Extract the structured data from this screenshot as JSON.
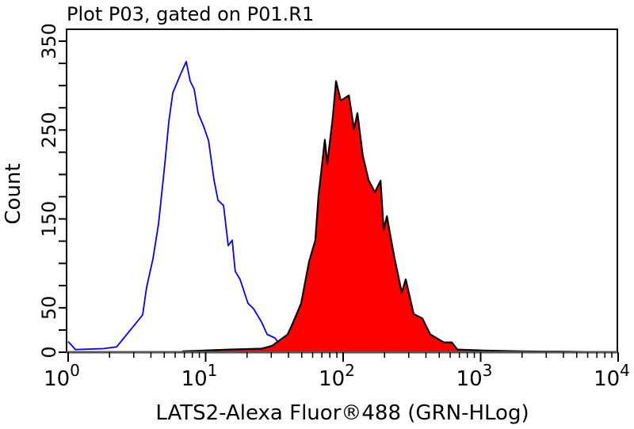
{
  "chart_data": {
    "type": "area",
    "title": "Plot P03, gated on P01.R1",
    "xlabel": "LATS2-Alexa Fluor®488 (GRN-HLog)",
    "ylabel": "Count",
    "xscale": "log",
    "xlim": [
      1,
      10000
    ],
    "ylim": [
      0,
      363
    ],
    "x_ticks": [
      {
        "base": "10",
        "exp": "0",
        "value": 1
      },
      {
        "base": "10",
        "exp": "1",
        "value": 10
      },
      {
        "base": "10",
        "exp": "2",
        "value": 100
      },
      {
        "base": "10",
        "exp": "3",
        "value": 1000
      },
      {
        "base": "10",
        "exp": "4",
        "value": 10000
      }
    ],
    "y_tick_labels": [
      "0",
      "50",
      "150",
      "250",
      "350"
    ],
    "y_tick_step": 25,
    "grid": false,
    "series": [
      {
        "style": "line",
        "color": "#0000ff",
        "x": [
          1,
          1.13,
          1.79,
          2.25,
          2.67,
          3.05,
          3.48,
          3.72,
          4.14,
          4.54,
          5.05,
          5.4,
          5.77,
          6.58,
          7.22,
          7.72,
          8.25,
          8.82,
          9.68,
          10.5,
          11.5,
          12.3,
          13.5,
          14.6,
          15.6,
          16.4,
          17.8,
          20.3,
          22.3,
          25.5,
          28,
          31.9,
          36.5,
          43.4,
          243,
          3460,
          10000
        ],
        "y": [
          12,
          3,
          4,
          6,
          20,
          31,
          42,
          73,
          105,
          144,
          212,
          260,
          292,
          313,
          327,
          305,
          296,
          269,
          254,
          238,
          194,
          171,
          165,
          120,
          126,
          91,
          82,
          55,
          49,
          34,
          20,
          16,
          4,
          2,
          1,
          1,
          0
        ]
      },
      {
        "style": "filled",
        "color": "#ff0000",
        "edge_color": "#000000",
        "x": [
          6.76,
          15,
          25.5,
          30.3,
          39.5,
          43.4,
          49.5,
          56.5,
          62.8,
          66.2,
          73.6,
          76.7,
          84.2,
          88.7,
          96.1,
          110,
          120,
          127,
          139,
          153,
          170,
          187,
          197,
          208,
          234,
          267,
          285,
          326,
          377,
          430,
          540,
          617,
          676,
          1047,
          2033,
          10000
        ],
        "y": [
          1,
          3,
          4,
          7,
          20,
          34,
          55,
          102,
          126,
          176,
          239,
          212,
          265,
          305,
          283,
          289,
          251,
          269,
          221,
          194,
          180,
          193,
          138,
          153,
          109,
          67,
          82,
          43,
          38,
          20,
          11,
          11,
          3,
          2,
          1,
          0
        ]
      }
    ]
  }
}
